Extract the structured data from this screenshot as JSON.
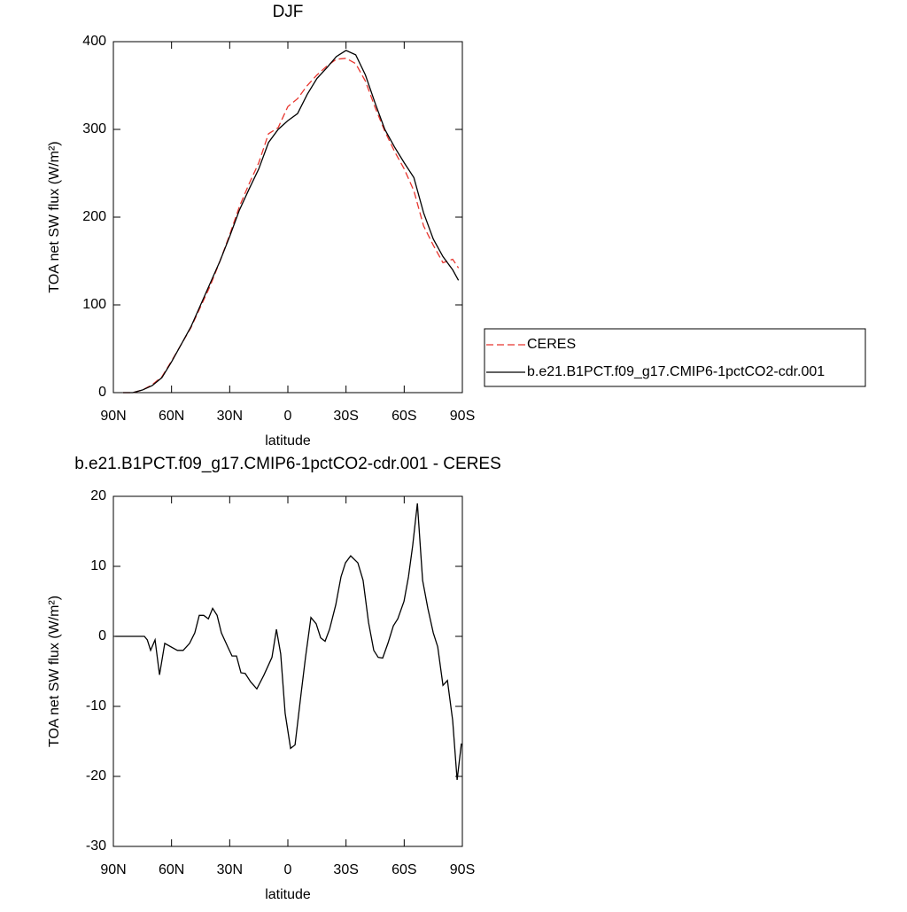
{
  "chart_data": [
    {
      "type": "line",
      "title": "DJF",
      "x_label": "latitude",
      "y_label": "TOA net SW flux (W/m²)",
      "x": [
        85,
        80,
        75,
        70,
        65,
        60,
        55,
        50,
        45,
        40,
        35,
        30,
        25,
        20,
        15,
        10,
        5,
        0,
        -5,
        -10,
        -15,
        -20,
        -25,
        -30,
        -35,
        -40,
        -45,
        -50,
        -55,
        -60,
        -65,
        -70,
        -75,
        -80,
        -85,
        -88
      ],
      "series": [
        {
          "name": "CERES",
          "color": "#e8352e",
          "dashed": true,
          "values": [
            0,
            0,
            3,
            9,
            18,
            36,
            55,
            74,
            98,
            122,
            150,
            180,
            212,
            238,
            262,
            295,
            302,
            326,
            335,
            350,
            362,
            372,
            380,
            381,
            375,
            355,
            325,
            298,
            275,
            255,
            230,
            190,
            168,
            148,
            152,
            142
          ]
        },
        {
          "name": "b.e21.B1PCT.f09_g17.CMIP6-1pctCO2-cdr.001",
          "color": "#000000",
          "dashed": false,
          "values": [
            0,
            0,
            3,
            8,
            17,
            35,
            55,
            75,
            100,
            125,
            150,
            178,
            208,
            232,
            255,
            285,
            300,
            310,
            318,
            340,
            358,
            370,
            383,
            390,
            385,
            362,
            330,
            300,
            280,
            262,
            245,
            205,
            175,
            155,
            140,
            128
          ]
        }
      ],
      "xlim": [
        90,
        -90
      ],
      "xticks": [
        {
          "value": 90,
          "label": "90N"
        },
        {
          "value": 60,
          "label": "60N"
        },
        {
          "value": 30,
          "label": "30N"
        },
        0,
        {
          "value": -30,
          "label": "30S"
        },
        {
          "value": -60,
          "label": "60S"
        },
        {
          "value": -90,
          "label": "90S"
        }
      ],
      "ylim": [
        0,
        400
      ],
      "yticks": [
        0,
        100,
        200,
        300,
        400
      ]
    },
    {
      "type": "line",
      "title": "b.e21.B1PCT.f09_g17.CMIP6-1pctCO2-cdr.001 - CERES",
      "x_label": "latitude",
      "y_label": "TOA net SW flux (W/m²)",
      "x": [
        89,
        74,
        72.5,
        70.8,
        68.5,
        66.2,
        63.5,
        57,
        54,
        50.7,
        48,
        45.7,
        43.4,
        41,
        38.8,
        36.5,
        34.3,
        31,
        28.8,
        26.5,
        24.2,
        22,
        19.2,
        16,
        12.3,
        8.2,
        5.9,
        3.7,
        1.4,
        -1.4,
        -3.7,
        -6.9,
        -9.1,
        -11.9,
        -14.6,
        -16.9,
        -19.2,
        -21.5,
        -24.7,
        -27.4,
        -29.7,
        -32.4,
        -36.1,
        -38.8,
        -41.6,
        -44.3,
        -46.6,
        -48.9,
        -51.6,
        -54.4,
        -56.7,
        -59.9,
        -62.2,
        -64.4,
        -66.8,
        -69.5,
        -72.2,
        -75,
        -77.3,
        -80,
        -82.3,
        -85,
        -87.3,
        -89.5
      ],
      "series": [
        {
          "name": null,
          "color": "#000000",
          "dashed": false,
          "values": [
            0,
            0,
            -0.5,
            -2,
            -0.5,
            -5.5,
            -1,
            -2,
            -2,
            -1,
            0.5,
            3,
            3,
            2.5,
            4,
            3,
            0.5,
            -1.5,
            -2.8,
            -2.8,
            -5.2,
            -5.3,
            -6.5,
            -7.5,
            -5.5,
            -3,
            1,
            -2.5,
            -11,
            -16,
            -15.5,
            -8,
            -3,
            2.7,
            1.8,
            -0.2,
            -0.7,
            1,
            4.5,
            8.5,
            10.5,
            11.5,
            10.5,
            8,
            2,
            -2,
            -3,
            -3.1,
            -1,
            1.5,
            2.5,
            5,
            8.5,
            13,
            19,
            8,
            4,
            0.5,
            -1.5,
            -7,
            -6.3,
            -12,
            -20.5,
            -15.3
          ]
        }
      ],
      "xlim": [
        90,
        -90
      ],
      "xticks": [
        {
          "value": 90,
          "label": "90N"
        },
        {
          "value": 60,
          "label": "60N"
        },
        {
          "value": 30,
          "label": "30N"
        },
        0,
        {
          "value": -30,
          "label": "30S"
        },
        {
          "value": -60,
          "label": "60S"
        },
        {
          "value": -90,
          "label": "90S"
        }
      ],
      "ylim": [
        -30,
        20
      ],
      "yticks": [
        -30,
        -20,
        -10,
        0,
        10,
        20
      ]
    }
  ]
}
